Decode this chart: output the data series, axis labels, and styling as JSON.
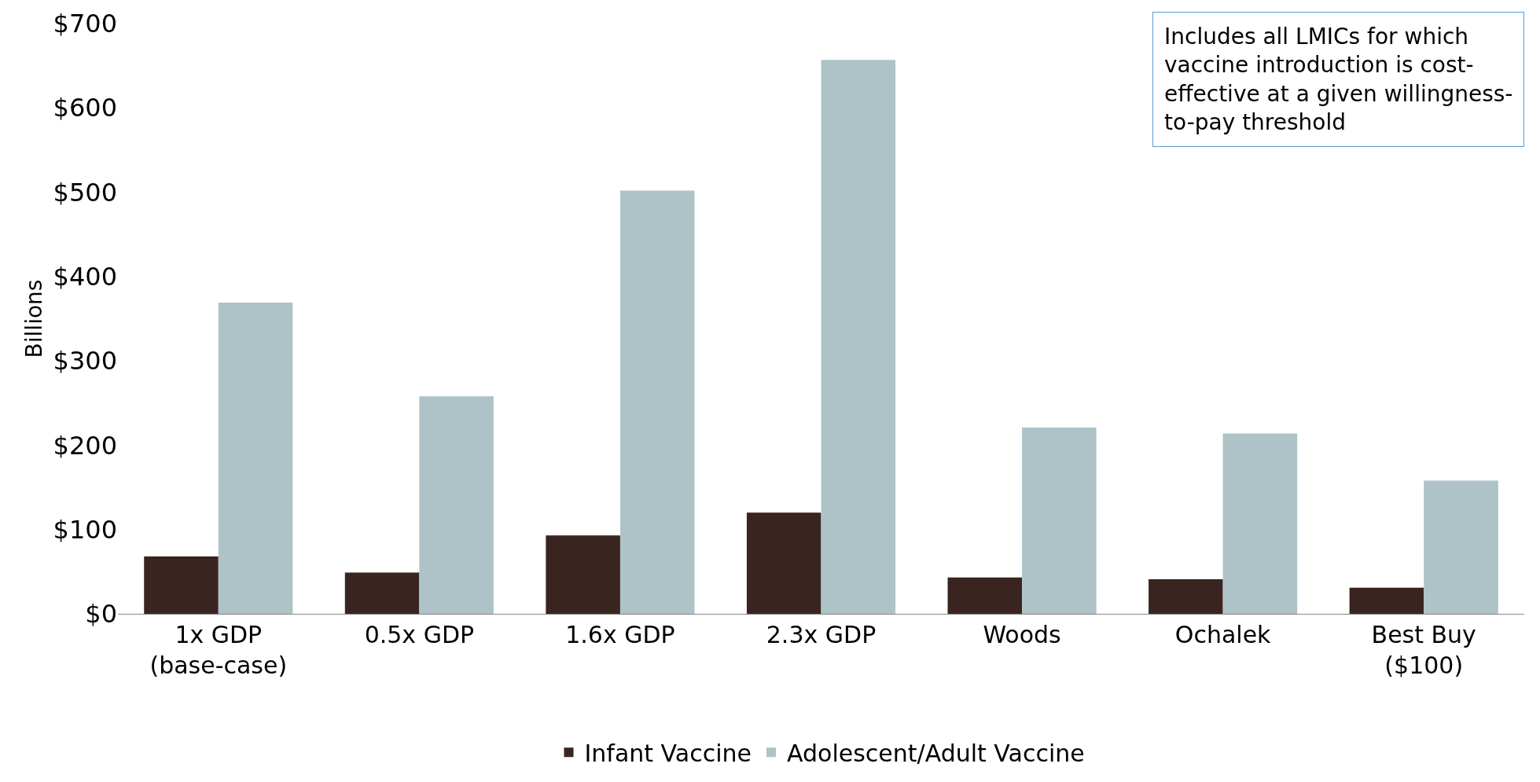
{
  "chart_data": {
    "type": "bar",
    "ylabel": "Billions",
    "categories": [
      "1x GDP\n(base-case)",
      "0.5x GDP",
      "1.6x GDP",
      "2.3x GDP",
      "Woods",
      "Ochalek",
      "Best Buy\n($100)"
    ],
    "series": [
      {
        "name": "Infant Vaccine",
        "color": "#3a2420",
        "values": [
          68,
          49,
          93,
          120,
          43,
          41,
          31
        ]
      },
      {
        "name": "Adolescent/Adult Vaccine",
        "color": "#adc3c8",
        "values": [
          369,
          258,
          502,
          657,
          221,
          214,
          158
        ]
      }
    ],
    "ylim": [
      0,
      700
    ],
    "yticks": [
      {
        "value": 0,
        "label": "$0"
      },
      {
        "value": 100,
        "label": "$100"
      },
      {
        "value": 200,
        "label": "$200"
      },
      {
        "value": 300,
        "label": "$300"
      },
      {
        "value": 400,
        "label": "$400"
      },
      {
        "value": 500,
        "label": "$500"
      },
      {
        "value": 600,
        "label": "$600"
      },
      {
        "value": 700,
        "label": "$700"
      }
    ],
    "annotations": [
      "Includes all LMICs for which\nvaccine introduction is cost-\neffective at a given willingness-\nto-pay threshold"
    ],
    "legend": "bottom"
  }
}
